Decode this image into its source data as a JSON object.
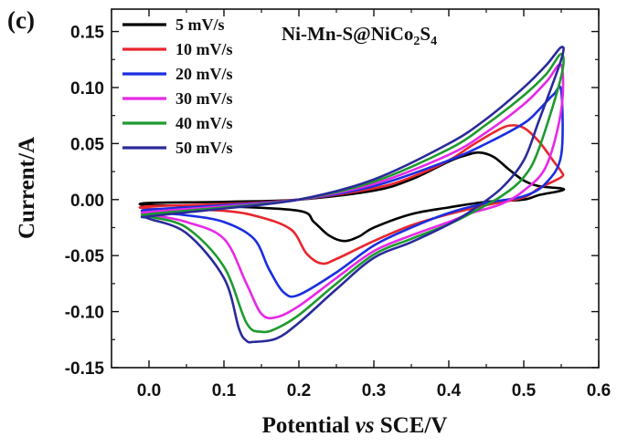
{
  "chart_data": {
    "type": "line",
    "panel_label": "(c)",
    "annotation": {
      "base": "Ni-Mn-S@NiCo",
      "sub1": "2",
      "mid": "S",
      "sub2": "4"
    },
    "xlabel": {
      "pre": "Potential ",
      "italic": "vs",
      "post": " SCE/V"
    },
    "ylabel": "Current/A",
    "xlim": [
      -0.05,
      0.6
    ],
    "ylim": [
      -0.15,
      0.17
    ],
    "xticks": [
      0.0,
      0.1,
      0.2,
      0.3,
      0.4,
      0.5,
      0.6
    ],
    "xtick_labels": [
      "0.0",
      "0.1",
      "0.2",
      "0.3",
      "0.4",
      "0.5",
      "0.6"
    ],
    "yticks": [
      -0.15,
      -0.1,
      -0.05,
      0.0,
      0.05,
      0.1,
      0.15
    ],
    "ytick_labels": [
      "-0.15",
      "-0.10",
      "-0.05",
      "0.00",
      "0.05",
      "0.10",
      "0.15"
    ],
    "legend_position": "top-left",
    "series": [
      {
        "name": "5 mV/s",
        "color": "#000000",
        "x": [
          0.0,
          0.1,
          0.2,
          0.3,
          0.35,
          0.4,
          0.42,
          0.44,
          0.46,
          0.48,
          0.5,
          0.52,
          0.55,
          0.55,
          0.52,
          0.5,
          0.45,
          0.4,
          0.35,
          0.3,
          0.28,
          0.26,
          0.24,
          0.22,
          0.2,
          0.1,
          0.0
        ],
        "y": [
          -0.003,
          -0.002,
          0.0,
          0.008,
          0.018,
          0.034,
          0.039,
          0.042,
          0.038,
          0.027,
          0.017,
          0.012,
          0.01,
          0.008,
          0.004,
          0.0,
          -0.002,
          -0.007,
          -0.013,
          -0.025,
          -0.033,
          -0.037,
          -0.032,
          -0.02,
          -0.01,
          -0.006,
          -0.005
        ]
      },
      {
        "name": "10 mV/s",
        "color": "#e8262d",
        "x": [
          0.0,
          0.1,
          0.2,
          0.3,
          0.35,
          0.4,
          0.43,
          0.46,
          0.48,
          0.5,
          0.52,
          0.54,
          0.55,
          0.55,
          0.52,
          0.5,
          0.45,
          0.4,
          0.35,
          0.3,
          0.25,
          0.23,
          0.21,
          0.19,
          0.15,
          0.1,
          0.0
        ],
        "y": [
          -0.006,
          -0.004,
          0.0,
          0.01,
          0.02,
          0.035,
          0.048,
          0.06,
          0.066,
          0.064,
          0.052,
          0.034,
          0.025,
          0.02,
          0.01,
          0.002,
          -0.005,
          -0.013,
          -0.023,
          -0.037,
          -0.053,
          -0.057,
          -0.048,
          -0.027,
          -0.016,
          -0.01,
          -0.008
        ]
      },
      {
        "name": "20 mV/s",
        "color": "#1a2ee0",
        "x": [
          0.0,
          0.1,
          0.2,
          0.3,
          0.4,
          0.45,
          0.5,
          0.52,
          0.54,
          0.55,
          0.55,
          0.53,
          0.5,
          0.45,
          0.4,
          0.35,
          0.3,
          0.25,
          0.2,
          0.18,
          0.16,
          0.14,
          0.1,
          0.05,
          0.0
        ],
        "y": [
          -0.009,
          -0.005,
          0.0,
          0.012,
          0.035,
          0.05,
          0.068,
          0.08,
          0.094,
          0.097,
          0.04,
          0.015,
          0.003,
          -0.003,
          -0.012,
          -0.025,
          -0.041,
          -0.065,
          -0.085,
          -0.083,
          -0.062,
          -0.035,
          -0.02,
          -0.014,
          -0.011
        ]
      },
      {
        "name": "30 mV/s",
        "color": "#e629e6",
        "x": [
          0.0,
          0.1,
          0.2,
          0.3,
          0.4,
          0.45,
          0.5,
          0.53,
          0.55,
          0.55,
          0.53,
          0.5,
          0.47,
          0.43,
          0.4,
          0.35,
          0.3,
          0.25,
          0.2,
          0.17,
          0.15,
          0.13,
          0.1,
          0.05,
          0.0
        ],
        "y": [
          -0.011,
          -0.006,
          0.0,
          0.014,
          0.04,
          0.06,
          0.085,
          0.105,
          0.12,
          0.08,
          0.03,
          0.008,
          -0.004,
          -0.012,
          -0.02,
          -0.032,
          -0.046,
          -0.07,
          -0.095,
          -0.105,
          -0.102,
          -0.075,
          -0.035,
          -0.02,
          -0.013
        ]
      },
      {
        "name": "40 mV/s",
        "color": "#1e9a2e",
        "x": [
          0.0,
          0.1,
          0.2,
          0.3,
          0.4,
          0.45,
          0.5,
          0.53,
          0.55,
          0.55,
          0.52,
          0.5,
          0.47,
          0.43,
          0.4,
          0.35,
          0.3,
          0.25,
          0.2,
          0.17,
          0.15,
          0.13,
          0.1,
          0.05,
          0.0
        ],
        "y": [
          -0.013,
          -0.007,
          0.0,
          0.016,
          0.045,
          0.067,
          0.093,
          0.112,
          0.13,
          0.11,
          0.045,
          0.02,
          0.003,
          -0.012,
          -0.022,
          -0.035,
          -0.049,
          -0.075,
          -0.103,
          -0.115,
          -0.118,
          -0.11,
          -0.06,
          -0.025,
          -0.015
        ]
      },
      {
        "name": "50 mV/s",
        "color": "#2a2a9a",
        "x": [
          0.0,
          0.1,
          0.2,
          0.3,
          0.4,
          0.45,
          0.5,
          0.53,
          0.55,
          0.55,
          0.52,
          0.5,
          0.47,
          0.43,
          0.4,
          0.35,
          0.3,
          0.25,
          0.2,
          0.17,
          0.14,
          0.13,
          0.12,
          0.1,
          0.05,
          0.0
        ],
        "y": [
          -0.015,
          -0.008,
          0.0,
          0.018,
          0.05,
          0.072,
          0.1,
          0.12,
          0.136,
          0.125,
          0.07,
          0.035,
          0.01,
          -0.01,
          -0.022,
          -0.038,
          -0.052,
          -0.08,
          -0.11,
          -0.124,
          -0.127,
          -0.126,
          -0.115,
          -0.07,
          -0.03,
          -0.017
        ]
      }
    ]
  }
}
